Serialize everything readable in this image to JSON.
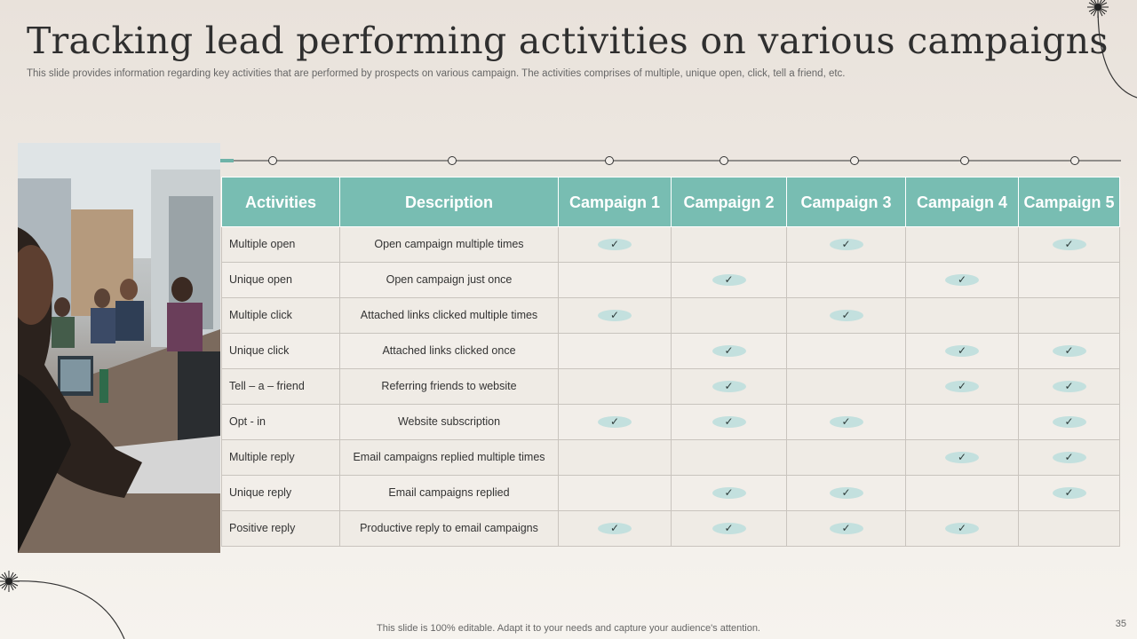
{
  "slide": {
    "title": "Tracking lead performing activities on various campaigns",
    "subtitle": "This slide provides information regarding key activities that are performed by prospects on various campaign. The activities comprises of multiple, unique open, click, tell a friend, etc.",
    "footer": "This slide is 100% editable. Adapt it to your needs and capture your audience's attention.",
    "page_number": "35"
  },
  "table": {
    "headers": [
      "Activities",
      "Description",
      "Campaign 1",
      "Campaign 2",
      "Campaign 3",
      "Campaign 4",
      "Campaign 5"
    ],
    "check_symbol": "✓",
    "rows": [
      {
        "activity": "Multiple open",
        "description": "Open campaign multiple times",
        "checks": [
          true,
          false,
          true,
          false,
          true
        ]
      },
      {
        "activity": "Unique open",
        "description": "Open campaign just once",
        "checks": [
          false,
          true,
          false,
          true,
          false
        ]
      },
      {
        "activity": "Multiple click",
        "description": "Attached links clicked multiple times",
        "checks": [
          true,
          false,
          true,
          false,
          false
        ]
      },
      {
        "activity": "Unique click",
        "description": "Attached links clicked once",
        "checks": [
          false,
          true,
          false,
          true,
          true
        ]
      },
      {
        "activity": "Tell – a – friend",
        "description": "Referring friends to website",
        "checks": [
          false,
          true,
          false,
          true,
          true
        ]
      },
      {
        "activity": "Opt - in",
        "description": "Website subscription",
        "checks": [
          true,
          true,
          true,
          false,
          true
        ]
      },
      {
        "activity": "Multiple reply",
        "description": "Email campaigns replied multiple times",
        "checks": [
          false,
          false,
          false,
          true,
          true
        ]
      },
      {
        "activity": "Unique reply",
        "description": "Email campaigns replied",
        "checks": [
          false,
          true,
          true,
          false,
          true
        ]
      },
      {
        "activity": "Positive reply",
        "description": "Productive reply to email campaigns",
        "checks": [
          true,
          true,
          true,
          true,
          false
        ]
      }
    ]
  },
  "colors": {
    "header_bg": "#78bdb2",
    "check_bg": "#c3e0de",
    "accent_line": "#6fb3a8"
  }
}
